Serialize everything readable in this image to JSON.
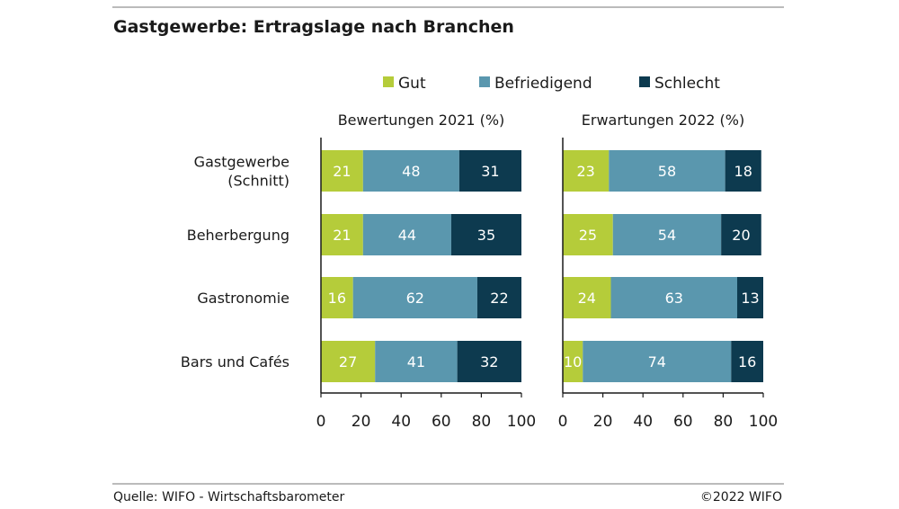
{
  "title": "Gastgewerbe: Ertragslage nach Branchen",
  "source": "Quelle: WIFO - Wirtschaftsbarometer",
  "copyright": "©2022 WIFO",
  "legend": [
    {
      "label": "Gut",
      "color": "#b5cc3a"
    },
    {
      "label": "Befriedigend",
      "color": "#5a97ae"
    },
    {
      "label": "Schlecht",
      "color": "#0d3a4f"
    }
  ],
  "chart_data": [
    {
      "type": "bar",
      "orientation": "horizontal",
      "stacked": true,
      "title": "Bewertungen 2021 (%)",
      "categories": [
        "Gastgewerbe (Schnitt)",
        "Beherbergung",
        "Gastronomie",
        "Bars und Cafés"
      ],
      "series": [
        {
          "name": "Gut",
          "values": [
            21,
            21,
            16,
            27
          ]
        },
        {
          "name": "Befriedigend",
          "values": [
            48,
            44,
            62,
            41
          ]
        },
        {
          "name": "Schlecht",
          "values": [
            31,
            35,
            22,
            32
          ]
        }
      ],
      "xlim": [
        0,
        100
      ],
      "xticks": [
        0,
        20,
        40,
        60,
        80,
        100
      ]
    },
    {
      "type": "bar",
      "orientation": "horizontal",
      "stacked": true,
      "title": "Erwartungen 2022 (%)",
      "categories": [
        "Gastgewerbe (Schnitt)",
        "Beherbergung",
        "Gastronomie",
        "Bars und Cafés"
      ],
      "series": [
        {
          "name": "Gut",
          "values": [
            23,
            25,
            24,
            10
          ]
        },
        {
          "name": "Befriedigend",
          "values": [
            58,
            54,
            63,
            74
          ]
        },
        {
          "name": "Schlecht",
          "values": [
            18,
            20,
            13,
            16
          ]
        }
      ],
      "xlim": [
        0,
        100
      ],
      "xticks": [
        0,
        20,
        40,
        60,
        80,
        100
      ]
    }
  ],
  "category_labels": [
    [
      "Gastgewerbe",
      "(Schnitt)"
    ],
    [
      "Beherbergung"
    ],
    [
      "Gastronomie"
    ],
    [
      "Bars und Cafés"
    ]
  ]
}
